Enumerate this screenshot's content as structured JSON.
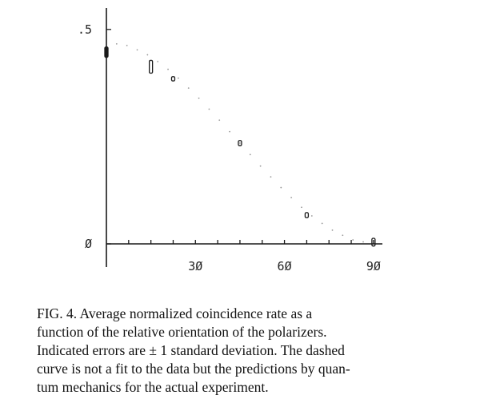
{
  "chart_data": {
    "type": "scatter",
    "title": "",
    "xlabel": "",
    "ylabel": "",
    "xlim": [
      0,
      93
    ],
    "ylim": [
      0,
      0.55
    ],
    "x_ticks": [
      0,
      7.5,
      15,
      22.5,
      30,
      37.5,
      45,
      52.5,
      60,
      67.5,
      75,
      82.5,
      90
    ],
    "x_tick_labels": [
      {
        "value": 30,
        "label": "3Ø"
      },
      {
        "value": 60,
        "label": "6Ø"
      },
      {
        "value": 90,
        "label": "9Ø"
      }
    ],
    "y_ticks": [
      0,
      0.5
    ],
    "y_tick_labels": [
      {
        "value": 0,
        "label": "Ø"
      },
      {
        "value": 0.5,
        "label": ".5"
      }
    ],
    "grid": false,
    "series": [
      {
        "kind": "measured",
        "points": [
          {
            "x": 0,
            "y": 0.447,
            "err": 0.012
          },
          {
            "x": 15,
            "y": 0.413,
            "err": 0.015
          },
          {
            "x": 22.5,
            "y": 0.385,
            "err": 0.005
          },
          {
            "x": 45,
            "y": 0.235,
            "err": 0.006
          },
          {
            "x": 67.5,
            "y": 0.067,
            "err": 0.006
          },
          {
            "x": 90,
            "y": 0.004,
            "err": 0.009
          }
        ]
      },
      {
        "kind": "prediction",
        "style": "dashed",
        "x": [
          0,
          7.5,
          15,
          22.5,
          30,
          37.5,
          45,
          52.5,
          60,
          67.5,
          75,
          82.5,
          90
        ],
        "y": [
          0.47,
          0.462,
          0.437,
          0.398,
          0.348,
          0.293,
          0.235,
          0.177,
          0.123,
          0.074,
          0.036,
          0.01,
          0.0
        ]
      }
    ]
  },
  "caption": {
    "lines": [
      "FIG. 4.  Average normalized coincidence rate as a",
      "function of the relative orientation of the polarizers.",
      "Indicated errors are ± 1 standard deviation.  The dashed",
      "curve is not a fit to the data but the predictions by quan-",
      "tum mechanics for the actual experiment."
    ]
  }
}
